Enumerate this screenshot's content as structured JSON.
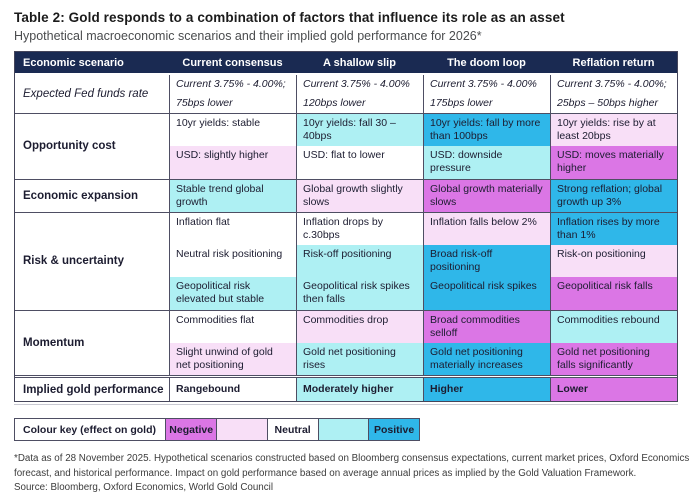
{
  "title": "Table 2: Gold responds to a combination of factors that influence its role as an asset",
  "subtitle": "Hypothetical macroeconomic scenarios and their implied gold performance for 2026*",
  "colors": {
    "header_bg": "#1a2a52",
    "positive": "#2fb7e9",
    "mild_positive": "#aef0f3",
    "neutral": "#ffffff",
    "mild_negative": "#f8dff7",
    "negative": "#db76e5"
  },
  "header": {
    "columns": [
      "Economic scenario",
      "Current consensus",
      "A shallow slip",
      "The doom loop",
      "Reflation return"
    ]
  },
  "groups": [
    {
      "label": "Expected Fed funds rate",
      "rows": [
        {
          "cells": [
            {
              "line1": "Current 3.75% - 4.00%;",
              "line2": "75bps lower",
              "effect": "neutral"
            },
            {
              "line1": "Current 3.75% - 4.00%",
              "line2": "120bps lower",
              "effect": "neutral"
            },
            {
              "line1": "Current 3.75% - 4.00%",
              "line2": "175bps lower",
              "effect": "neutral"
            },
            {
              "line1": "Current 3.75% - 4.00%;",
              "line2": "25bps – 50bps higher",
              "effect": "neutral"
            }
          ]
        }
      ]
    },
    {
      "label": "Opportunity cost",
      "rows": [
        {
          "cells": [
            {
              "text": "10yr yields: stable",
              "effect": "neutral"
            },
            {
              "text": "10yr yields: fall 30 – 40bps",
              "effect": "mild-positive"
            },
            {
              "text": "10yr yields: fall by more than 100bps",
              "effect": "positive"
            },
            {
              "text": "10yr yields: rise by at least 20bps",
              "effect": "mild-negative"
            }
          ]
        },
        {
          "cells": [
            {
              "text": "USD: slightly higher",
              "effect": "mild-negative"
            },
            {
              "text": "USD: flat to lower",
              "effect": "neutral"
            },
            {
              "text": "USD: downside pressure",
              "effect": "mild-positive"
            },
            {
              "text": "USD: moves materially higher",
              "effect": "negative"
            }
          ]
        }
      ]
    },
    {
      "label": "Economic expansion",
      "rows": [
        {
          "cells": [
            {
              "text": "Stable trend global growth",
              "effect": "mild-positive"
            },
            {
              "text": "Global growth slightly slows",
              "effect": "mild-negative"
            },
            {
              "text": "Global growth materially slows",
              "effect": "negative"
            },
            {
              "text": "Strong reflation; global growth up 3%",
              "effect": "positive"
            }
          ]
        }
      ]
    },
    {
      "label": "Risk & uncertainty",
      "rows": [
        {
          "cells": [
            {
              "text": "Inflation flat",
              "effect": "neutral"
            },
            {
              "text": "Inflation drops by c.30bps",
              "effect": "neutral"
            },
            {
              "text": "Inflation falls below 2%",
              "effect": "mild-negative"
            },
            {
              "text": "Inflation rises by more than 1%",
              "effect": "positive"
            }
          ]
        },
        {
          "cells": [
            {
              "text": "Neutral risk positioning",
              "effect": "neutral"
            },
            {
              "text": "Risk-off positioning",
              "effect": "mild-positive"
            },
            {
              "text": "Broad risk-off positioning",
              "effect": "positive"
            },
            {
              "text": "Risk-on positioning",
              "effect": "mild-negative"
            }
          ]
        },
        {
          "cells": [
            {
              "text": "Geopolitical risk elevated but stable",
              "effect": "mild-positive"
            },
            {
              "text": "Geopolitical risk spikes then falls",
              "effect": "mild-positive"
            },
            {
              "text": "Geopolitical risk spikes",
              "effect": "positive"
            },
            {
              "text": "Geopolitical risk falls",
              "effect": "negative"
            }
          ]
        }
      ]
    },
    {
      "label": "Momentum",
      "rows": [
        {
          "cells": [
            {
              "text": "Commodities flat",
              "effect": "neutral"
            },
            {
              "text": "Commodities drop",
              "effect": "mild-negative"
            },
            {
              "text": "Broad commodities selloff",
              "effect": "negative"
            },
            {
              "text": "Commodities rebound",
              "effect": "mild-positive"
            }
          ]
        },
        {
          "cells": [
            {
              "text": "Slight unwind of gold net positioning",
              "effect": "mild-negative"
            },
            {
              "text": "Gold net positioning rises",
              "effect": "mild-positive"
            },
            {
              "text": "Gold net positioning materially increases",
              "effect": "positive"
            },
            {
              "text": "Gold net positioning falls significantly",
              "effect": "negative"
            }
          ]
        }
      ]
    },
    {
      "label": "Implied gold performance",
      "rows": [
        {
          "cells": [
            {
              "text": "Rangebound",
              "effect": "neutral"
            },
            {
              "text": "Moderately higher",
              "effect": "mild-positive"
            },
            {
              "text": "Higher",
              "effect": "positive"
            },
            {
              "text": "Lower",
              "effect": "negative"
            }
          ]
        }
      ]
    }
  ],
  "legend": {
    "label": "Colour key (effect on gold)",
    "items": [
      {
        "label": "Negative",
        "effect": "negative"
      },
      {
        "label": "",
        "effect": "mild-negative"
      },
      {
        "label": "Neutral",
        "effect": "neutral"
      },
      {
        "label": "",
        "effect": "mild-positive"
      },
      {
        "label": "Positive",
        "effect": "positive"
      }
    ]
  },
  "footnotes": {
    "note": "*Data as of 28 November 2025. Hypothetical scenarios constructed based on Bloomberg consensus expectations, current market prices, Oxford Economics forecast, and historical performance. Impact on gold performance based on average annual prices as implied by the Gold Valuation Framework.",
    "source": "Source: Bloomberg, Oxford Economics, World Gold Council"
  }
}
